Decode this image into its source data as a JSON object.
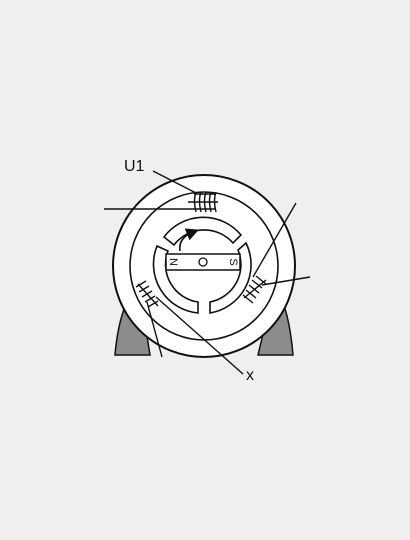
{
  "labels": {
    "coil_u1": "U1",
    "pointer_x": "x"
  },
  "rotor": {
    "north": "N",
    "south": "S"
  },
  "colors": {
    "background": "#efefef",
    "line": "#111111",
    "fill": "#ffffff",
    "base": "#8c8c8c"
  }
}
